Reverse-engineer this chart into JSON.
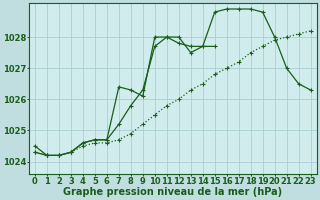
{
  "background_color": "#c0dde0",
  "plot_bg_color": "#d0ecec",
  "grid_color": "#a0c8cc",
  "line_color": "#1a5e1a",
  "xlabel": "Graphe pression niveau de la mer (hPa)",
  "xlabel_fontsize": 7,
  "tick_fontsize": 6,
  "xlim": [
    -0.5,
    23.5
  ],
  "ylim": [
    1023.6,
    1029.1
  ],
  "yticks": [
    1024,
    1025,
    1026,
    1027,
    1028
  ],
  "xticks": [
    0,
    1,
    2,
    3,
    4,
    5,
    6,
    7,
    8,
    9,
    10,
    11,
    12,
    13,
    14,
    15,
    16,
    17,
    18,
    19,
    20,
    21,
    22,
    23
  ],
  "series_dotted_x": [
    0,
    1,
    2,
    3,
    4,
    5,
    6,
    7,
    8,
    9,
    10,
    11,
    12,
    13,
    14,
    15,
    16,
    17,
    18,
    19,
    20,
    21,
    22,
    23
  ],
  "series_dotted_y": [
    1024.3,
    1024.2,
    1024.2,
    1024.3,
    1024.5,
    1024.6,
    1024.6,
    1024.7,
    1024.9,
    1025.2,
    1025.5,
    1025.8,
    1026.0,
    1026.3,
    1026.5,
    1026.8,
    1027.0,
    1027.2,
    1027.5,
    1027.7,
    1027.9,
    1028.0,
    1028.1,
    1028.2
  ],
  "series_solid1_x": [
    0,
    1,
    2,
    3,
    4,
    5,
    6,
    7,
    8,
    9,
    10,
    11,
    12,
    13,
    14,
    15,
    16,
    17,
    18,
    19,
    20,
    21,
    22,
    23
  ],
  "series_solid1_y": [
    1024.3,
    1024.2,
    1024.2,
    1024.3,
    1024.6,
    1024.7,
    1024.7,
    1026.4,
    1026.3,
    1026.1,
    1028.0,
    1028.0,
    1027.8,
    1027.7,
    1027.7,
    1027.7,
    null,
    null,
    null,
    null,
    null,
    null,
    null,
    null
  ],
  "series_solid2_x": [
    0,
    1,
    2,
    3,
    4,
    5,
    6,
    7,
    8,
    9,
    10,
    11,
    12,
    13,
    14,
    15,
    16,
    17,
    18,
    19,
    20,
    21,
    22,
    23
  ],
  "series_solid2_y": [
    1024.5,
    1024.2,
    1024.2,
    1024.3,
    1024.6,
    1024.7,
    1024.7,
    1025.2,
    1025.8,
    1026.3,
    1027.7,
    1028.0,
    1028.0,
    1027.5,
    1027.7,
    1028.8,
    1028.9,
    1028.9,
    1028.9,
    1028.8,
    1028.0,
    1027.0,
    1026.5,
    1026.3
  ]
}
